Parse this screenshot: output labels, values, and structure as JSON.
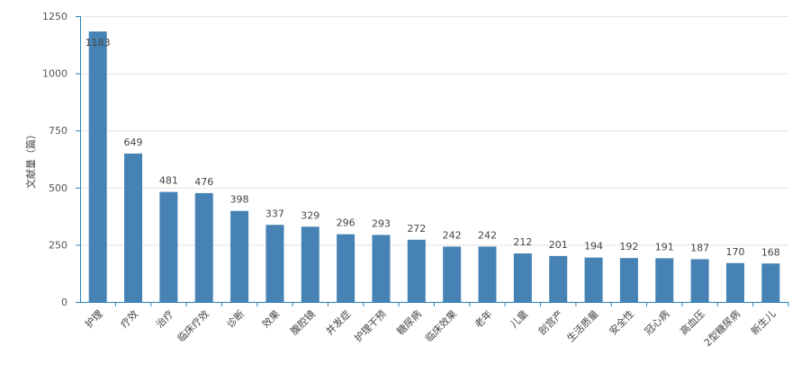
{
  "chart_data": {
    "type": "bar",
    "ylabel": "文献量（篇）",
    "xlabel": "",
    "ylim": [
      0,
      1250
    ],
    "yticks": [
      0,
      250,
      500,
      750,
      1000,
      1250
    ],
    "categories": [
      "护理",
      "疗效",
      "治疗",
      "临床疗效",
      "诊断",
      "效果",
      "腹腔镜",
      "并发症",
      "护理干预",
      "糖尿病",
      "临床效果",
      "老年",
      "儿童",
      "剖宫产",
      "生活质量",
      "安全性",
      "冠心病",
      "高血压",
      "2型糖尿病",
      "新生儿"
    ],
    "values": [
      1183,
      649,
      481,
      476,
      398,
      337,
      329,
      296,
      293,
      272,
      242,
      242,
      212,
      201,
      194,
      192,
      191,
      187,
      170,
      168
    ],
    "bar_color": "#4682b4",
    "axis_color": "#2b7fb8",
    "grid": true,
    "legend": "none"
  }
}
